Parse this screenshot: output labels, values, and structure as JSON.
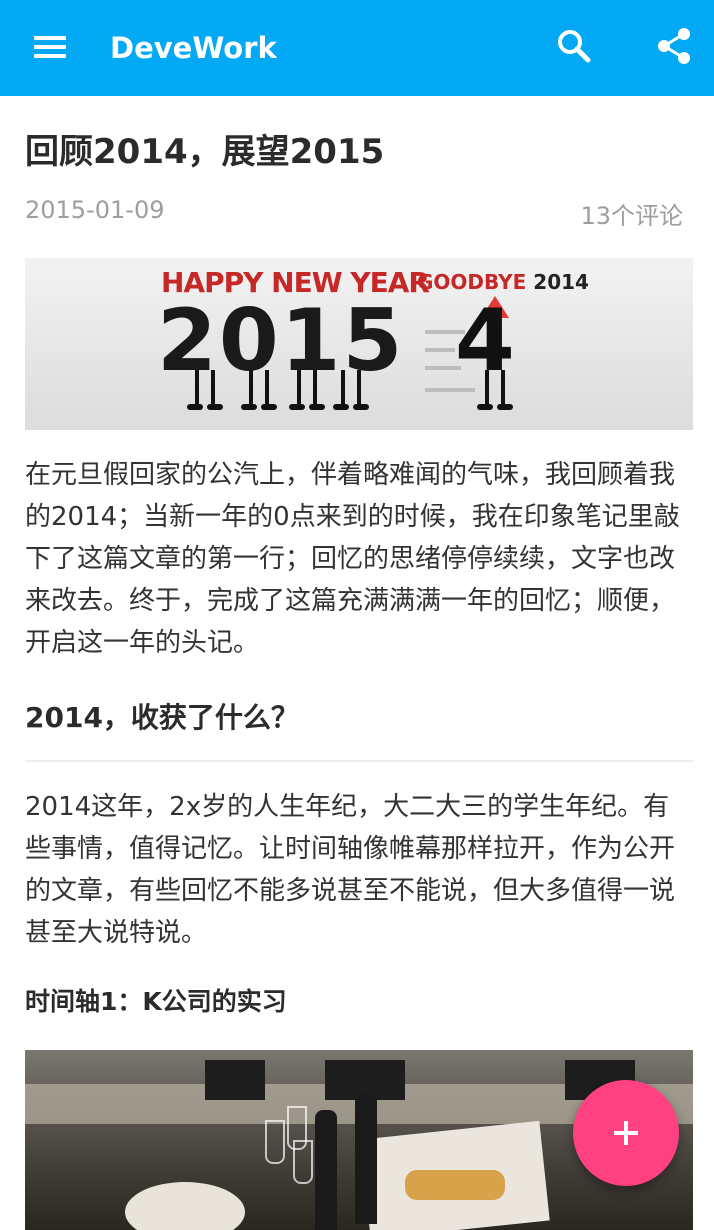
{
  "app": {
    "title": "DeveWork",
    "bar_color": "#03A9F4",
    "icons": {
      "menu": "menu-icon",
      "search": "search-icon",
      "share": "share-icon"
    }
  },
  "post": {
    "title": "回顾2014，展望2015",
    "date": "2015-01-09",
    "comments": "13个评论",
    "banner": {
      "headline_left": "HAPPY NEW YEAR",
      "headline_right_prefix": "GOODBYE",
      "headline_right_year": "2014",
      "big_number": "2015",
      "old_digit": "4"
    },
    "paragraph1": "在元旦假回家的公汽上，伴着略难闻的气味，我回顾着我的2014；当新一年的0点来到的时候，我在印象笔记里敲下了这篇文章的第一行；回忆的思绪停停续续，文字也改来改去。终于，完成了这篇充满满满一年的回忆；顺便，开启这一年的头记。",
    "heading2": "2014，收获了什么？",
    "paragraph2": "2014这年，2x岁的人生年纪，大二大三的学生年纪。有些事情，值得记忆。让时间轴像帷幕那样拉开，作为公开的文章，有些回忆不能多说甚至不能说，但大多值得一说甚至大说特说。",
    "heading3": "时间轴1：K公司的实习"
  },
  "fab": {
    "icon": "plus-icon",
    "color": "#FF4081"
  }
}
